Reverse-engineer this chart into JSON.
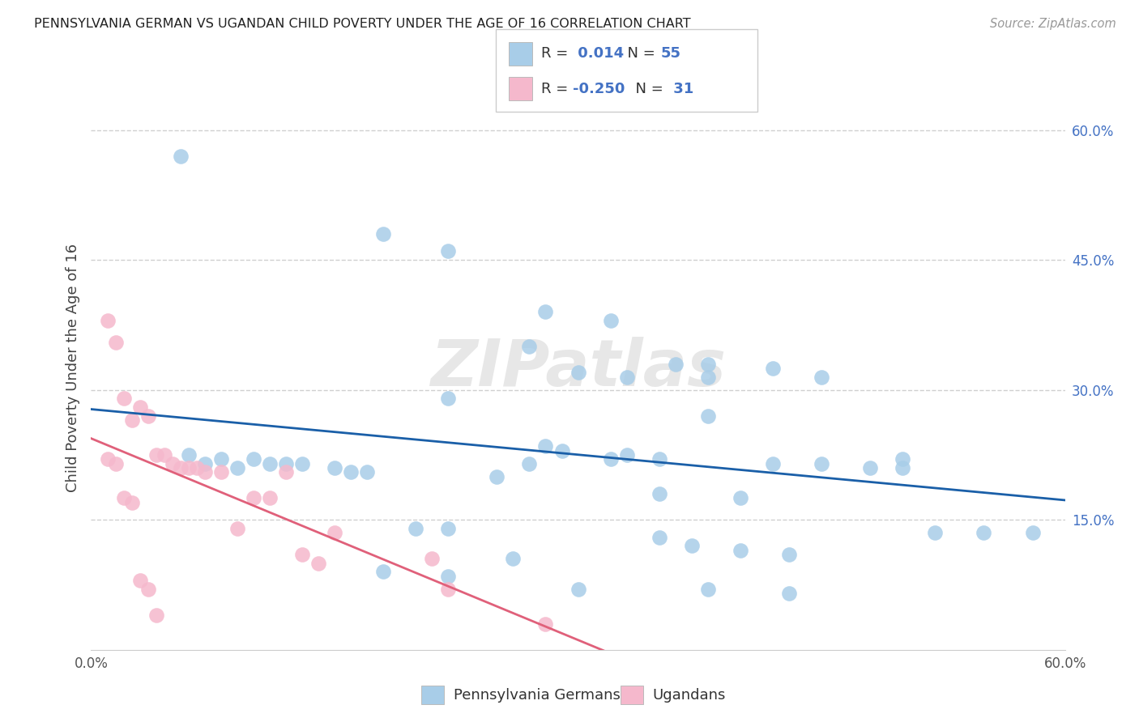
{
  "title": "PENNSYLVANIA GERMAN VS UGANDAN CHILD POVERTY UNDER THE AGE OF 16 CORRELATION CHART",
  "source": "Source: ZipAtlas.com",
  "ylabel": "Child Poverty Under the Age of 16",
  "R1": "0.014",
  "N1": "55",
  "R2": "-0.250",
  "N2": "31",
  "blue_color": "#a8cde8",
  "pink_color": "#f5b8cc",
  "blue_line_color": "#1a5fa8",
  "pink_line_color": "#e0607a",
  "right_axis_color": "#4472c4",
  "watermark": "ZIPatlas",
  "legend_label1": "Pennsylvania Germans",
  "legend_label2": "Ugandans",
  "blue_scatter_x": [
    0.055,
    0.18,
    0.22,
    0.28,
    0.32,
    0.27,
    0.36,
    0.38,
    0.42,
    0.45,
    0.38,
    0.52,
    0.22,
    0.28,
    0.33,
    0.35,
    0.42,
    0.48,
    0.35,
    0.4,
    0.5,
    0.55,
    0.58,
    0.06,
    0.07,
    0.08,
    0.09,
    0.1,
    0.11,
    0.12,
    0.13,
    0.15,
    0.16,
    0.17,
    0.2,
    0.22,
    0.25,
    0.27,
    0.29,
    0.32,
    0.35,
    0.37,
    0.4,
    0.43,
    0.3,
    0.33,
    0.22,
    0.26,
    0.45,
    0.5,
    0.18,
    0.3,
    0.38,
    0.43,
    0.38
  ],
  "blue_scatter_y": [
    0.57,
    0.48,
    0.46,
    0.39,
    0.38,
    0.35,
    0.33,
    0.33,
    0.325,
    0.315,
    0.27,
    0.135,
    0.29,
    0.235,
    0.225,
    0.22,
    0.215,
    0.21,
    0.18,
    0.175,
    0.22,
    0.135,
    0.135,
    0.225,
    0.215,
    0.22,
    0.21,
    0.22,
    0.215,
    0.215,
    0.215,
    0.21,
    0.205,
    0.205,
    0.14,
    0.14,
    0.2,
    0.215,
    0.23,
    0.22,
    0.13,
    0.12,
    0.115,
    0.11,
    0.32,
    0.315,
    0.085,
    0.105,
    0.215,
    0.21,
    0.09,
    0.07,
    0.07,
    0.065,
    0.315
  ],
  "pink_scatter_x": [
    0.01,
    0.015,
    0.02,
    0.025,
    0.03,
    0.035,
    0.04,
    0.045,
    0.05,
    0.055,
    0.06,
    0.065,
    0.07,
    0.08,
    0.09,
    0.1,
    0.11,
    0.12,
    0.13,
    0.14,
    0.15,
    0.21,
    0.22,
    0.28,
    0.01,
    0.015,
    0.02,
    0.025,
    0.03,
    0.035,
    0.04
  ],
  "pink_scatter_y": [
    0.38,
    0.355,
    0.29,
    0.265,
    0.28,
    0.27,
    0.225,
    0.225,
    0.215,
    0.21,
    0.21,
    0.21,
    0.205,
    0.205,
    0.14,
    0.175,
    0.175,
    0.205,
    0.11,
    0.1,
    0.135,
    0.105,
    0.07,
    0.03,
    0.22,
    0.215,
    0.175,
    0.17,
    0.08,
    0.07,
    0.04
  ]
}
